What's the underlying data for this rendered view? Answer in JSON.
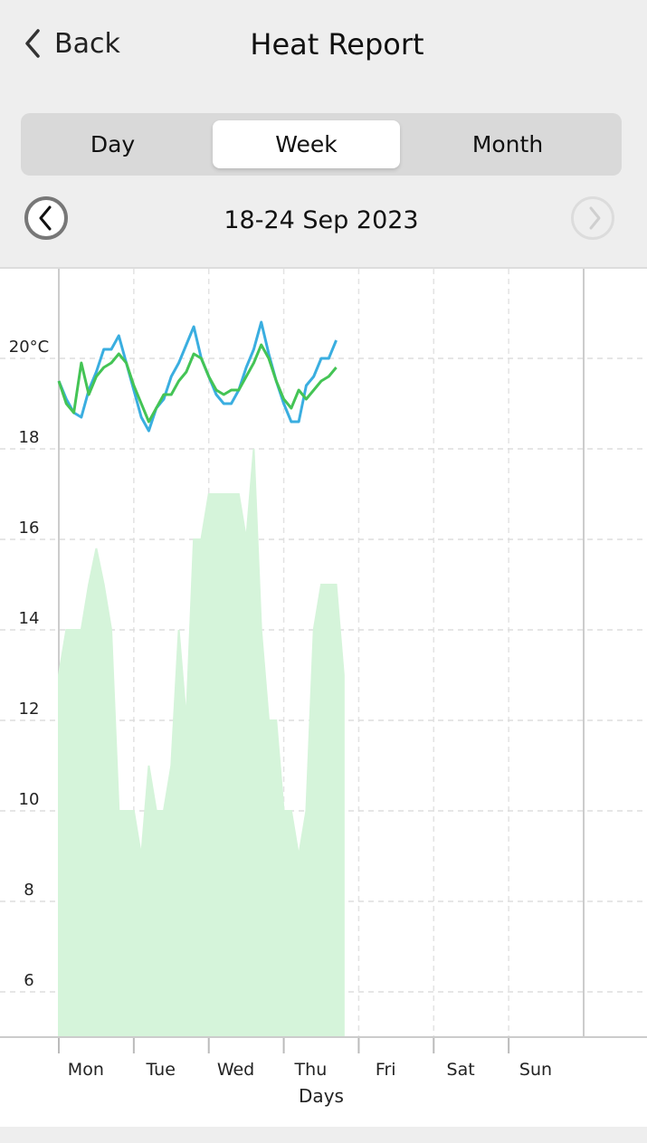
{
  "header": {
    "back": "Back",
    "title": "Heat Report"
  },
  "tabs": [
    "Day",
    "Week",
    "Month"
  ],
  "selected_tab": "Week",
  "date_range": "18-24 Sep 2023",
  "chart_data": {
    "type": "line",
    "x_label": "Days",
    "categories": [
      "Mon",
      "Tue",
      "Wed",
      "Thu",
      "Fri",
      "Sat",
      "Sun"
    ],
    "xlim": [
      0,
      7
    ],
    "ylim": [
      5,
      22
    ],
    "yticks": [
      6,
      8,
      10,
      12,
      14,
      16,
      18,
      {
        "value": 20,
        "label": "20°C"
      }
    ],
    "grid": true,
    "x": [
      0,
      0.1,
      0.2,
      0.3,
      0.4,
      0.5,
      0.6,
      0.7,
      0.8,
      0.9,
      1,
      1.1,
      1.2,
      1.3,
      1.4,
      1.5,
      1.6,
      1.7,
      1.8,
      1.9,
      2,
      2.1,
      2.2,
      2.3,
      2.4,
      2.5,
      2.6,
      2.7,
      2.8,
      2.9,
      3,
      3.1,
      3.2,
      3.3,
      3.4,
      3.5,
      3.6,
      3.7,
      3.8
    ],
    "series": [
      {
        "type": "area",
        "color": "#d5f4da",
        "values": [
          13,
          14,
          14,
          14,
          15,
          15.8,
          15,
          14,
          10,
          10,
          10,
          9,
          11,
          10,
          10,
          11,
          14,
          12,
          16,
          16,
          17,
          17,
          17,
          17,
          17,
          16,
          18,
          14,
          12,
          12,
          10,
          10,
          9,
          10,
          14,
          15,
          15,
          15,
          13
        ]
      },
      {
        "type": "line",
        "color": "#3aaee0",
        "values": [
          19.5,
          19.1,
          18.8,
          18.7,
          19.3,
          19.7,
          20.2,
          20.2,
          20.5,
          19.9,
          19.3,
          18.7,
          18.4,
          18.9,
          19.1,
          19.6,
          19.9,
          20.3,
          20.7,
          20.0,
          19.6,
          19.2,
          19.0,
          19.0,
          19.3,
          19.8,
          20.2,
          20.8,
          20.1,
          19.5,
          19.0,
          18.6,
          18.6,
          19.4,
          19.6,
          20.0,
          20.0,
          20.4,
          null
        ]
      },
      {
        "type": "line",
        "color": "#44c455",
        "values": [
          19.5,
          19.0,
          18.8,
          19.9,
          19.2,
          19.6,
          19.8,
          19.9,
          20.1,
          19.9,
          19.4,
          19.0,
          18.6,
          18.9,
          19.2,
          19.2,
          19.5,
          19.7,
          20.1,
          20.0,
          19.6,
          19.3,
          19.2,
          19.3,
          19.3,
          19.6,
          19.9,
          20.3,
          20.0,
          19.5,
          19.1,
          18.9,
          19.3,
          19.1,
          19.3,
          19.5,
          19.6,
          19.8,
          null
        ]
      }
    ]
  }
}
